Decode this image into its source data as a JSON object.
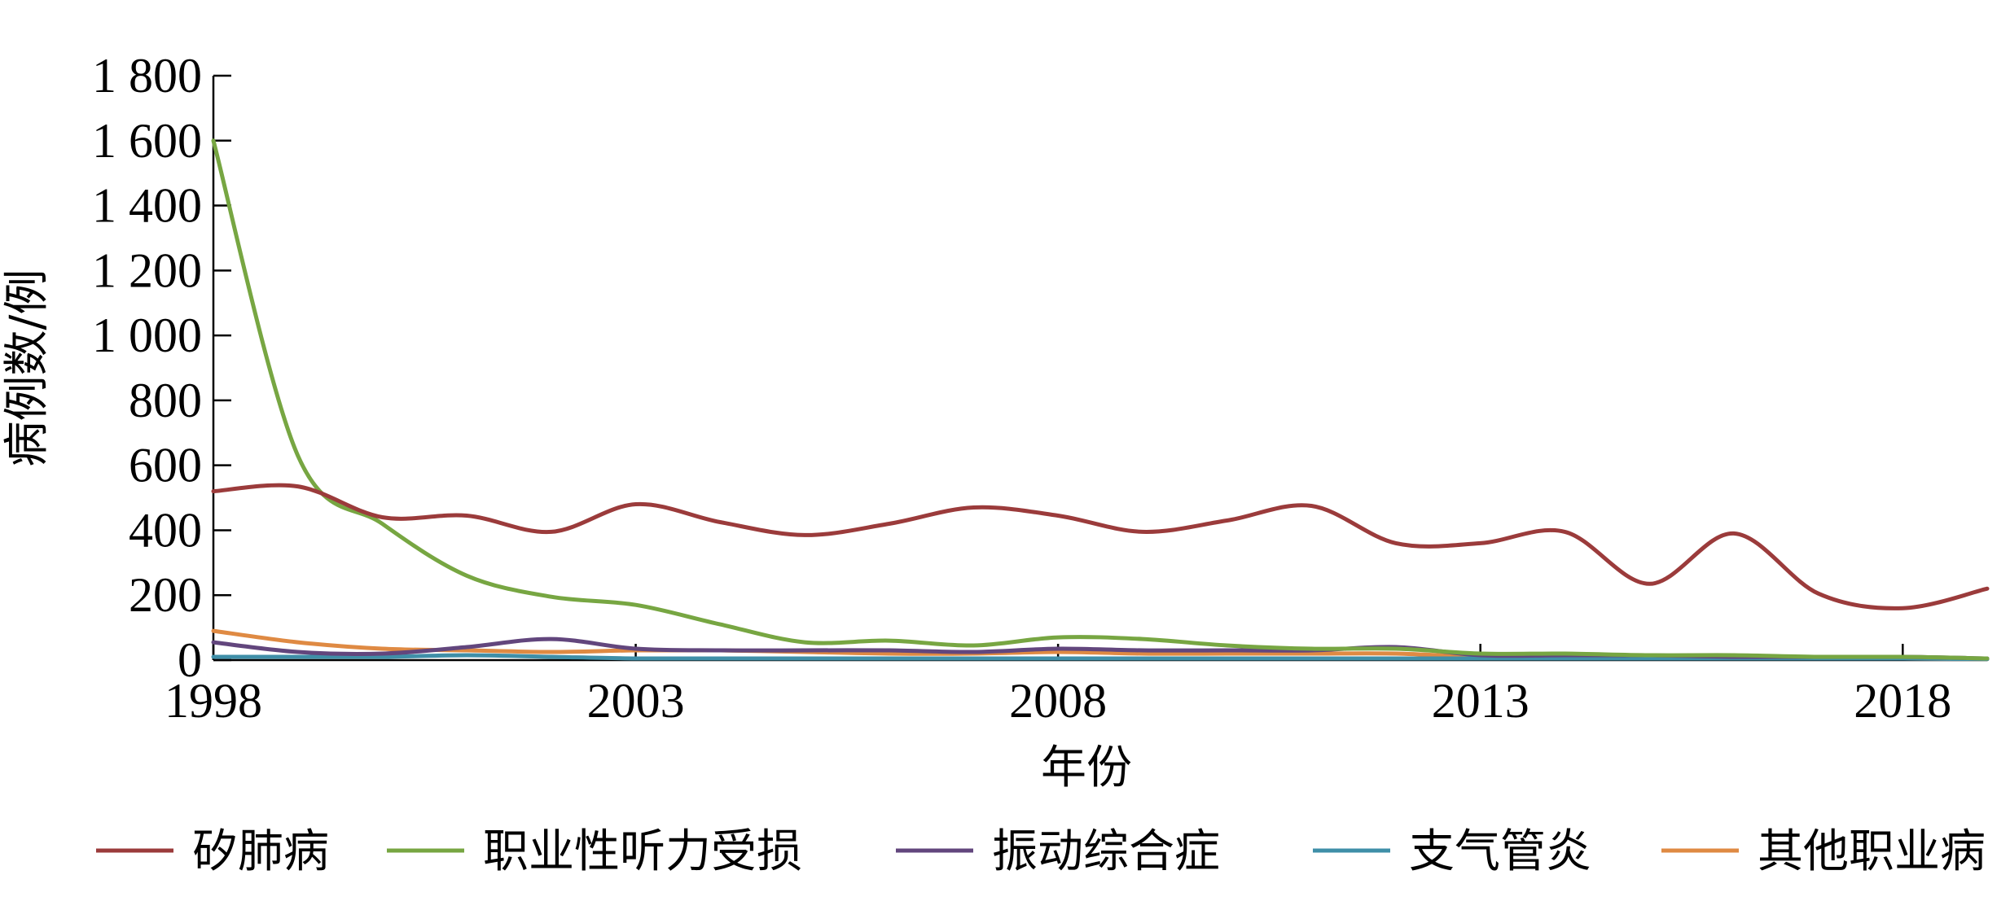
{
  "chart_data": {
    "type": "line",
    "xlabel": "年份",
    "ylabel": "病例数/例",
    "ylim": [
      0,
      1800
    ],
    "xlim": [
      1998,
      2019
    ],
    "y_ticks": [
      0,
      200,
      400,
      600,
      800,
      1000,
      1200,
      1400,
      1600,
      1800
    ],
    "y_tick_labels": [
      "0",
      "200",
      "400",
      "600",
      "800",
      "1 000",
      "1 200",
      "1 400",
      "1 600",
      "1 800"
    ],
    "x_ticks": [
      1998,
      2003,
      2008,
      2013,
      2018
    ],
    "x_tick_labels": [
      "1998",
      "2003",
      "2008",
      "2013",
      "2018"
    ],
    "grid": false,
    "legend_position": "bottom",
    "x": [
      1998,
      1999,
      2000,
      2001,
      2002,
      2003,
      2004,
      2005,
      2006,
      2007,
      2008,
      2009,
      2010,
      2011,
      2012,
      2013,
      2014,
      2015,
      2016,
      2017,
      2018,
      2019
    ],
    "series": [
      {
        "name": "矽肺病",
        "color": "#9b3b3b",
        "values": [
          520,
          535,
          440,
          445,
          395,
          480,
          425,
          385,
          420,
          470,
          445,
          395,
          430,
          475,
          360,
          360,
          395,
          235,
          390,
          205,
          160,
          220
        ]
      },
      {
        "name": "职业性听力受损",
        "color": "#77a642",
        "values": [
          1600,
          630,
          420,
          260,
          195,
          170,
          110,
          55,
          60,
          45,
          70,
          65,
          45,
          35,
          35,
          20,
          20,
          15,
          15,
          10,
          10,
          5
        ]
      },
      {
        "name": "振动综合症",
        "color": "#62467d",
        "values": [
          55,
          25,
          20,
          40,
          65,
          35,
          30,
          30,
          30,
          25,
          35,
          30,
          30,
          30,
          40,
          15,
          15,
          15,
          10,
          10,
          10,
          5
        ]
      },
      {
        "name": "支气管炎",
        "color": "#3f8fa8",
        "values": [
          10,
          10,
          10,
          15,
          10,
          5,
          5,
          5,
          5,
          5,
          5,
          5,
          5,
          5,
          5,
          5,
          5,
          5,
          5,
          5,
          5,
          3
        ]
      },
      {
        "name": "其他职业病",
        "color": "#df8a43",
        "values": [
          90,
          55,
          35,
          30,
          25,
          30,
          30,
          25,
          20,
          20,
          25,
          20,
          20,
          20,
          20,
          10,
          10,
          10,
          10,
          5,
          5,
          3
        ]
      }
    ]
  }
}
